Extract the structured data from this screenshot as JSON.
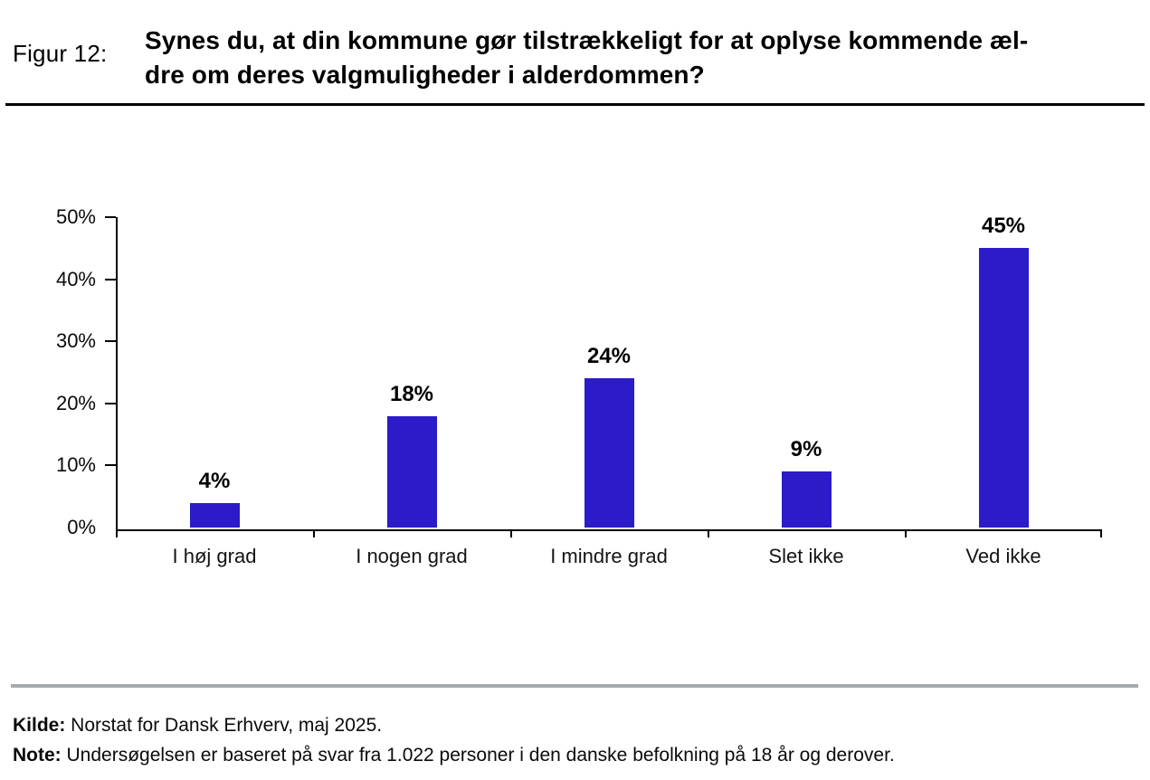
{
  "header": {
    "figure_label": "Figur 12:",
    "title_line1": "Synes du, at din kommune gør tilstrækkeligt for at oplyse kommende æl-",
    "title_line2": "dre om deres valgmuligheder i alderdommen?",
    "title_full": "Synes du, at din kommune gør tilstrækkeligt for at oplyse kommende ældre om deres valgmuligheder i alderdommen?"
  },
  "chart_data": {
    "type": "bar",
    "title": "Synes du, at din kommune gør tilstrækkeligt for at oplyse kommende ældre om deres valgmuligheder i alderdommen?",
    "categories": [
      "I høj grad",
      "I nogen grad",
      "I mindre grad",
      "Slet ikke",
      "Ved ikke"
    ],
    "values": [
      4,
      18,
      24,
      9,
      45
    ],
    "value_labels": [
      "4%",
      "18%",
      "24%",
      "9%",
      "45%"
    ],
    "xlabel": "",
    "ylabel": "",
    "ylim": [
      0,
      50
    ],
    "yticks": [
      0,
      10,
      20,
      30,
      40,
      50
    ],
    "ytick_labels": [
      "0%",
      "10%",
      "20%",
      "30%",
      "40%",
      "50%"
    ],
    "grid": "off",
    "legend": "none",
    "bar_color": "#2B1BC8",
    "axis_color": "#000000"
  },
  "footer": {
    "source_label": "Kilde:",
    "source_text": " Norstat for Dansk Erhverv, maj 2025.",
    "note_label": "Note:",
    "note_text": " Undersøgelsen er baseret på svar fra 1.022 personer i den danske befolkning på 18 år og derover."
  },
  "colors": {
    "bar": "#2B1BC8",
    "divider_top": "#000000",
    "divider_bottom": "#A6ACAE"
  }
}
